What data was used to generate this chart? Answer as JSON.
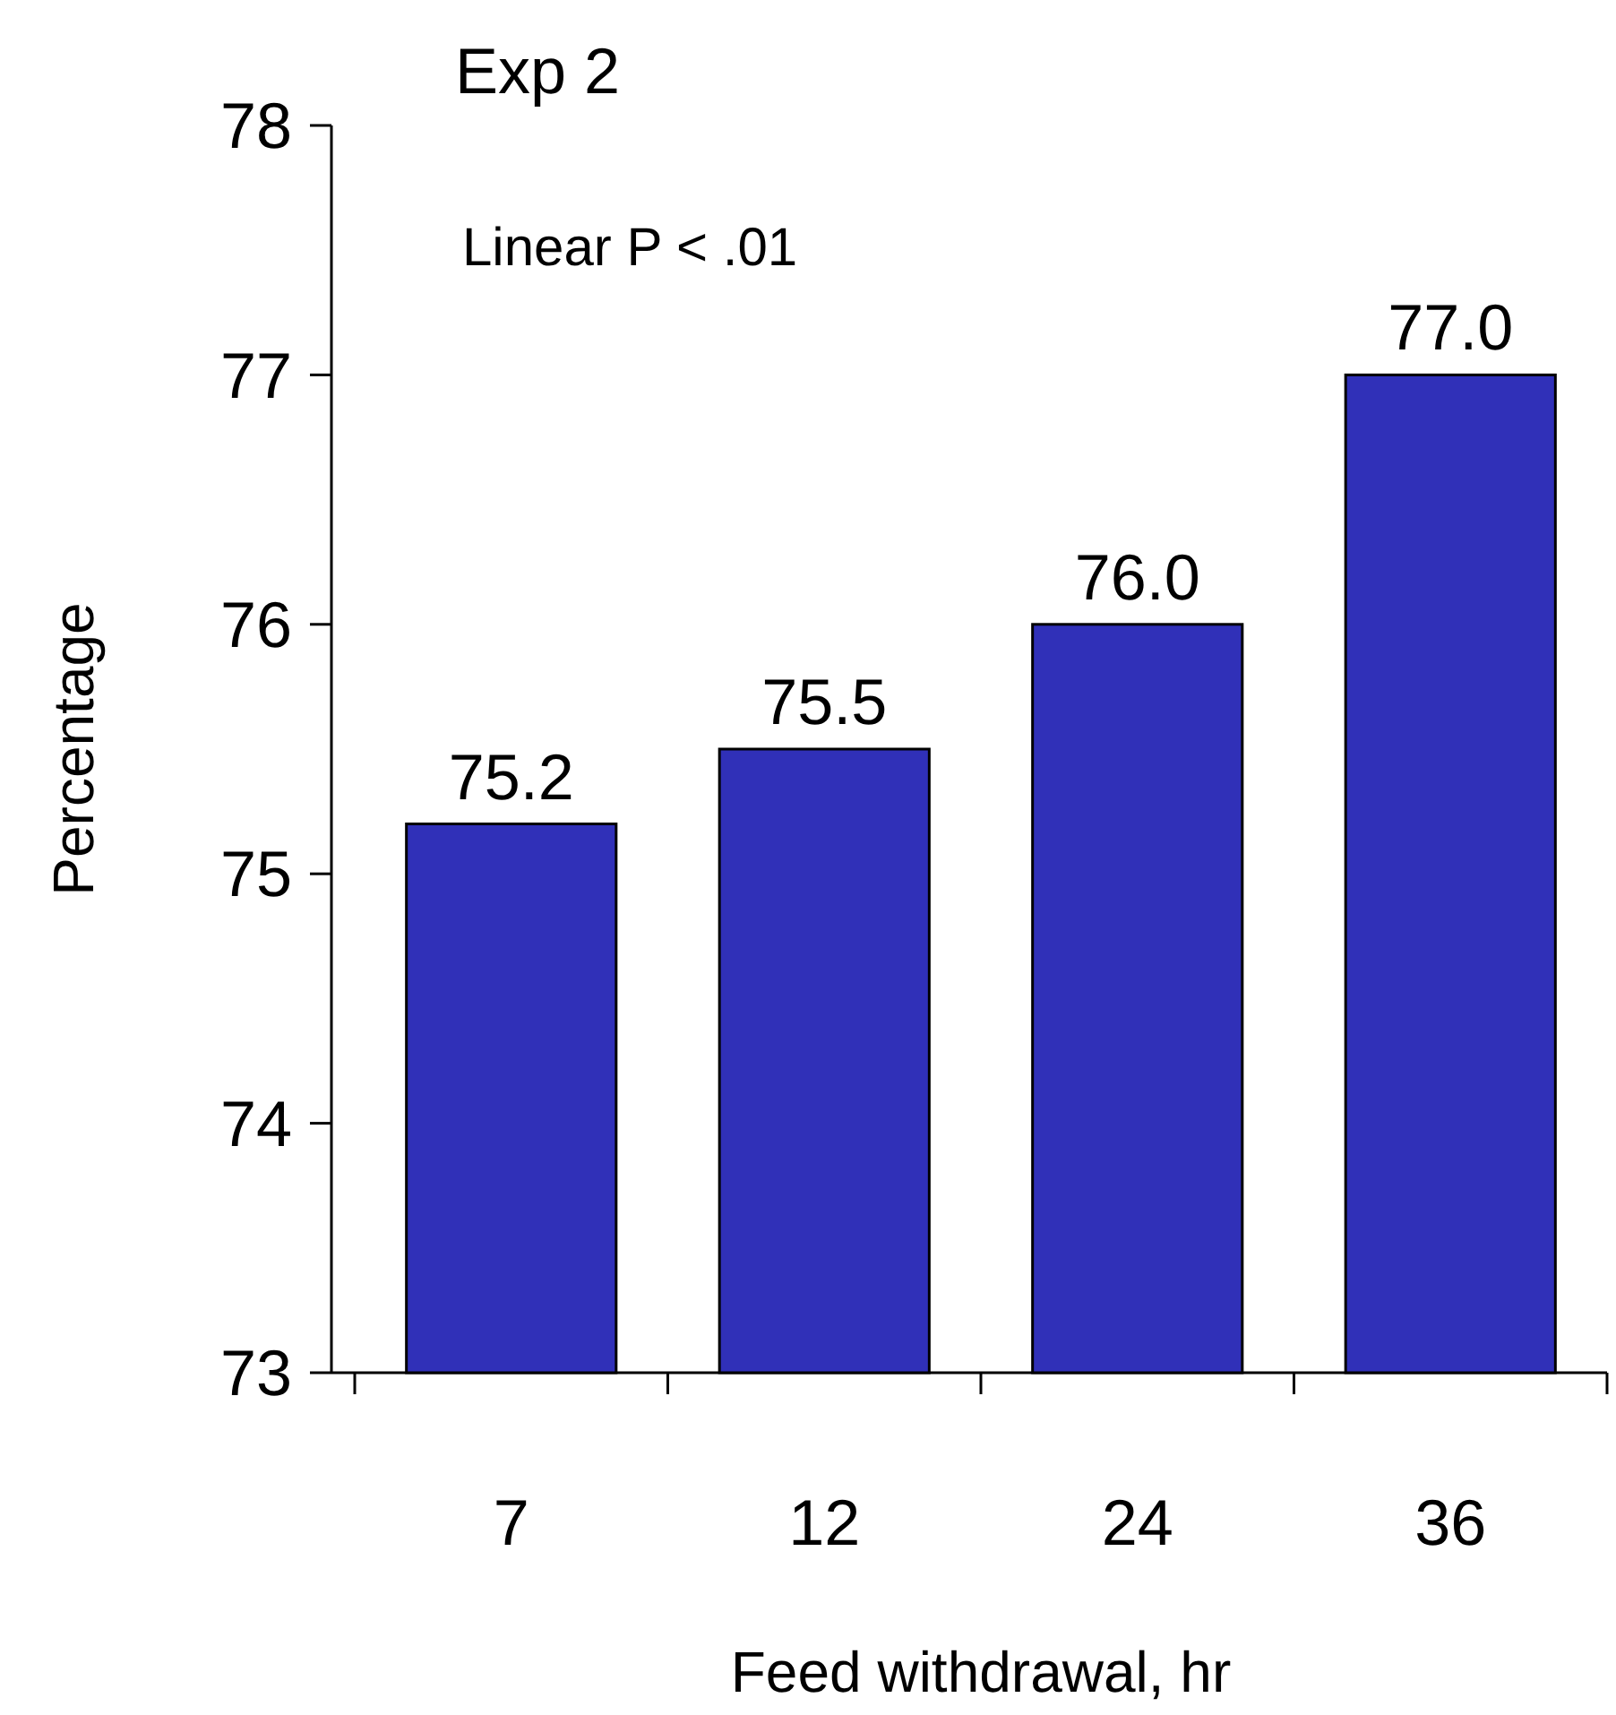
{
  "chart_data": {
    "type": "bar",
    "title": "Exp 2",
    "xlabel": "Feed withdrawal, hr",
    "ylabel": "Percentage",
    "categories": [
      "7",
      "12",
      "24",
      "36"
    ],
    "values": [
      75.2,
      75.5,
      76.0,
      77.0
    ],
    "value_labels": [
      "75.2",
      "75.5",
      "76.0",
      "77.0"
    ],
    "color": "#3030b8",
    "ylim": [
      73,
      78
    ],
    "yticks": [
      73,
      74,
      75,
      76,
      77,
      78
    ],
    "annotations": [
      "Linear P < .01"
    ]
  }
}
